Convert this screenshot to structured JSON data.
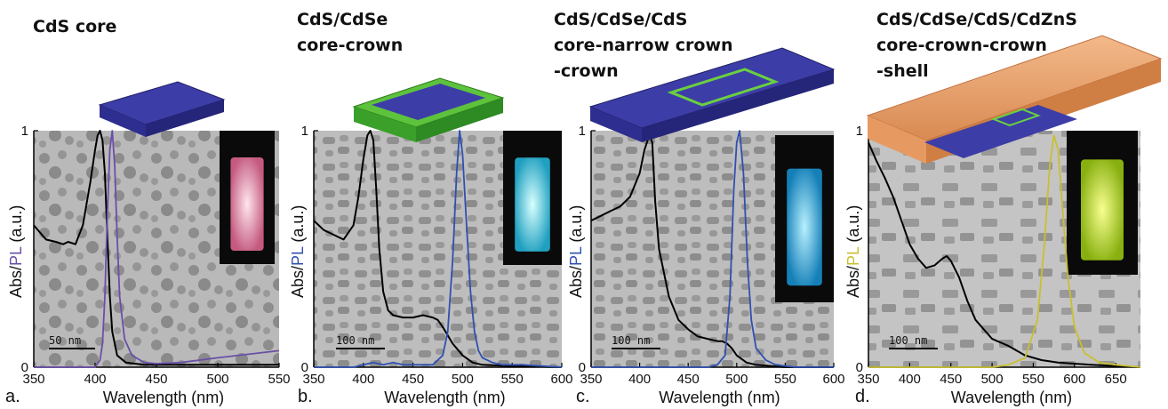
{
  "figure": {
    "panels": [
      {
        "id": "a",
        "letter": "a.",
        "title_lines": [
          "CdS core"
        ],
        "scale_bar_label": "50 nm",
        "ylabel_left": "Abs/",
        "ylabel_right": "PL",
        "ylabel_suffix": " (a.u.)",
        "pl_color": "#6a4fa8",
        "vial_color": "#f2b8c8",
        "vial_glow": "#d46a8e"
      },
      {
        "id": "b",
        "letter": "b.",
        "title_lines": [
          "CdS/CdSe",
          "core-crown"
        ],
        "scale_bar_label": "100 nm",
        "ylabel_left": "Abs/",
        "ylabel_right": "PL",
        "ylabel_suffix": " (a.u.)",
        "pl_color": "#3050b0",
        "vial_color": "#7fe8ec",
        "vial_glow": "#2aa8c8"
      },
      {
        "id": "c",
        "letter": "c.",
        "title_lines": [
          "CdS/CdSe/CdS",
          "core-narrow crown",
          "-crown"
        ],
        "scale_bar_label": "100 nm",
        "ylabel_left": "Abs/",
        "ylabel_right": "PL",
        "ylabel_suffix": " (a.u.)",
        "pl_color": "#3050b0",
        "vial_color": "#5cc6e6",
        "vial_glow": "#1a8cc0"
      },
      {
        "id": "d",
        "letter": "d.",
        "title_lines": [
          "CdS/CdSe/CdS/CdZnS",
          "core-crown-crown",
          "-shell"
        ],
        "scale_bar_label": "100 nm",
        "ylabel_left": "Abs/",
        "ylabel_right": "PL",
        "ylabel_suffix": " (a.u.)",
        "pl_color": "#c8c030",
        "vial_color": "#d8f040",
        "vial_glow": "#98c020"
      }
    ]
  },
  "chart_data": [
    {
      "type": "line",
      "title": "CdS core",
      "xlabel": "Wavelength (nm)",
      "ylabel": "Abs/PL (a.u.)",
      "xlim": [
        350,
        550
      ],
      "ylim": [
        0,
        1
      ],
      "xticks": [
        350,
        400,
        450,
        500,
        550
      ],
      "yticks": [
        0,
        1
      ],
      "series": [
        {
          "name": "Abs",
          "color": "#000000",
          "x": [
            350,
            360,
            368,
            374,
            378,
            384,
            390,
            396,
            400,
            402,
            404,
            406,
            408,
            410,
            412,
            414,
            418,
            425,
            440,
            460,
            500,
            550
          ],
          "y": [
            0.6,
            0.54,
            0.53,
            0.52,
            0.53,
            0.52,
            0.6,
            0.78,
            0.92,
            0.98,
            1.0,
            0.96,
            0.82,
            0.55,
            0.3,
            0.15,
            0.05,
            0.02,
            0.01,
            0.01,
            0.01,
            0.01
          ]
        },
        {
          "name": "PL",
          "color": "#6a4fa8",
          "x": [
            350,
            400,
            404,
            406,
            408,
            410,
            412,
            414,
            416,
            418,
            420,
            424,
            430,
            440,
            450,
            470,
            500,
            550
          ],
          "y": [
            0.0,
            0.0,
            0.03,
            0.1,
            0.3,
            0.65,
            0.92,
            1.0,
            0.85,
            0.55,
            0.3,
            0.12,
            0.05,
            0.02,
            0.015,
            0.02,
            0.04,
            0.07
          ]
        }
      ]
    },
    {
      "type": "line",
      "title": "CdS/CdSe core-crown",
      "xlabel": "Wavelength (nm)",
      "ylabel": "Abs/PL (a.u.)",
      "xlim": [
        350,
        600
      ],
      "ylim": [
        0,
        1
      ],
      "xticks": [
        350,
        400,
        450,
        500,
        550,
        600
      ],
      "yticks": [
        0,
        1
      ],
      "series": [
        {
          "name": "Abs",
          "color": "#000000",
          "x": [
            350,
            360,
            370,
            380,
            390,
            395,
            400,
            404,
            407,
            410,
            413,
            416,
            420,
            425,
            430,
            440,
            450,
            460,
            470,
            475,
            480,
            490,
            500,
            510,
            520,
            550,
            600
          ],
          "y": [
            0.62,
            0.58,
            0.56,
            0.54,
            0.6,
            0.72,
            0.88,
            0.98,
            1.0,
            0.96,
            0.75,
            0.5,
            0.32,
            0.24,
            0.22,
            0.21,
            0.21,
            0.22,
            0.21,
            0.2,
            0.17,
            0.1,
            0.05,
            0.02,
            0.01,
            0.005,
            0.0
          ]
        },
        {
          "name": "PL",
          "color": "#3050b0",
          "x": [
            350,
            390,
            400,
            410,
            420,
            430,
            440,
            470,
            480,
            485,
            490,
            494,
            497,
            500,
            504,
            508,
            512,
            516,
            520,
            530,
            540,
            560,
            600
          ],
          "y": [
            0.0,
            0.0,
            0.01,
            0.02,
            0.01,
            0.02,
            0.01,
            0.01,
            0.05,
            0.15,
            0.45,
            0.82,
            1.0,
            0.9,
            0.6,
            0.32,
            0.15,
            0.07,
            0.04,
            0.02,
            0.01,
            0.01,
            0.0
          ]
        }
      ]
    },
    {
      "type": "line",
      "title": "CdS/CdSe/CdS core-narrow crown -crown",
      "xlabel": "Wavelength (nm)",
      "ylabel": "Abs/PL (a.u.)",
      "xlim": [
        350,
        600
      ],
      "ylim": [
        0,
        1
      ],
      "xticks": [
        350,
        400,
        450,
        500,
        550,
        600
      ],
      "yticks": [
        0,
        1
      ],
      "series": [
        {
          "name": "Abs",
          "color": "#000000",
          "x": [
            350,
            360,
            370,
            380,
            390,
            400,
            405,
            410,
            413,
            416,
            420,
            430,
            440,
            450,
            460,
            470,
            480,
            485,
            490,
            495,
            500,
            510,
            520,
            550,
            600
          ],
          "y": [
            0.62,
            0.64,
            0.66,
            0.68,
            0.72,
            0.82,
            0.92,
            0.98,
            0.95,
            0.7,
            0.5,
            0.3,
            0.2,
            0.16,
            0.13,
            0.12,
            0.11,
            0.11,
            0.1,
            0.08,
            0.05,
            0.02,
            0.01,
            0.0,
            0.0
          ]
        },
        {
          "name": "PL",
          "color": "#3050b0",
          "x": [
            350,
            470,
            480,
            488,
            493,
            497,
            500,
            503,
            507,
            511,
            515,
            520,
            530,
            540,
            560,
            600
          ],
          "y": [
            0.0,
            0.0,
            0.01,
            0.05,
            0.3,
            0.75,
            0.95,
            1.0,
            0.82,
            0.45,
            0.2,
            0.08,
            0.03,
            0.01,
            0.0,
            0.0
          ]
        }
      ]
    },
    {
      "type": "line",
      "title": "CdS/CdSe/CdS/CdZnS core-crown-crown -shell",
      "xlabel": "Wavelength (nm)",
      "ylabel": "Abs/PL (a.u.)",
      "xlim": [
        350,
        680
      ],
      "ylim": [
        0,
        1
      ],
      "xticks": [
        350,
        400,
        450,
        500,
        550,
        600,
        650
      ],
      "yticks": [
        0,
        1
      ],
      "series": [
        {
          "name": "Abs",
          "color": "#000000",
          "x": [
            350,
            360,
            370,
            380,
            390,
            400,
            410,
            420,
            430,
            440,
            445,
            450,
            460,
            470,
            480,
            500,
            520,
            540,
            560,
            580,
            600,
            620,
            680
          ],
          "y": [
            0.95,
            0.87,
            0.8,
            0.72,
            0.62,
            0.52,
            0.46,
            0.42,
            0.43,
            0.46,
            0.47,
            0.45,
            0.38,
            0.28,
            0.2,
            0.12,
            0.09,
            0.05,
            0.03,
            0.02,
            0.015,
            0.01,
            0.0
          ]
        },
        {
          "name": "PL",
          "color": "#c8c030",
          "x": [
            350,
            500,
            520,
            540,
            555,
            563,
            570,
            575,
            580,
            586,
            592,
            600,
            612,
            630,
            650,
            680
          ],
          "y": [
            0.0,
            0.0,
            0.01,
            0.04,
            0.2,
            0.5,
            0.85,
            0.98,
            0.92,
            0.65,
            0.38,
            0.17,
            0.06,
            0.02,
            0.01,
            0.0
          ]
        }
      ]
    }
  ]
}
